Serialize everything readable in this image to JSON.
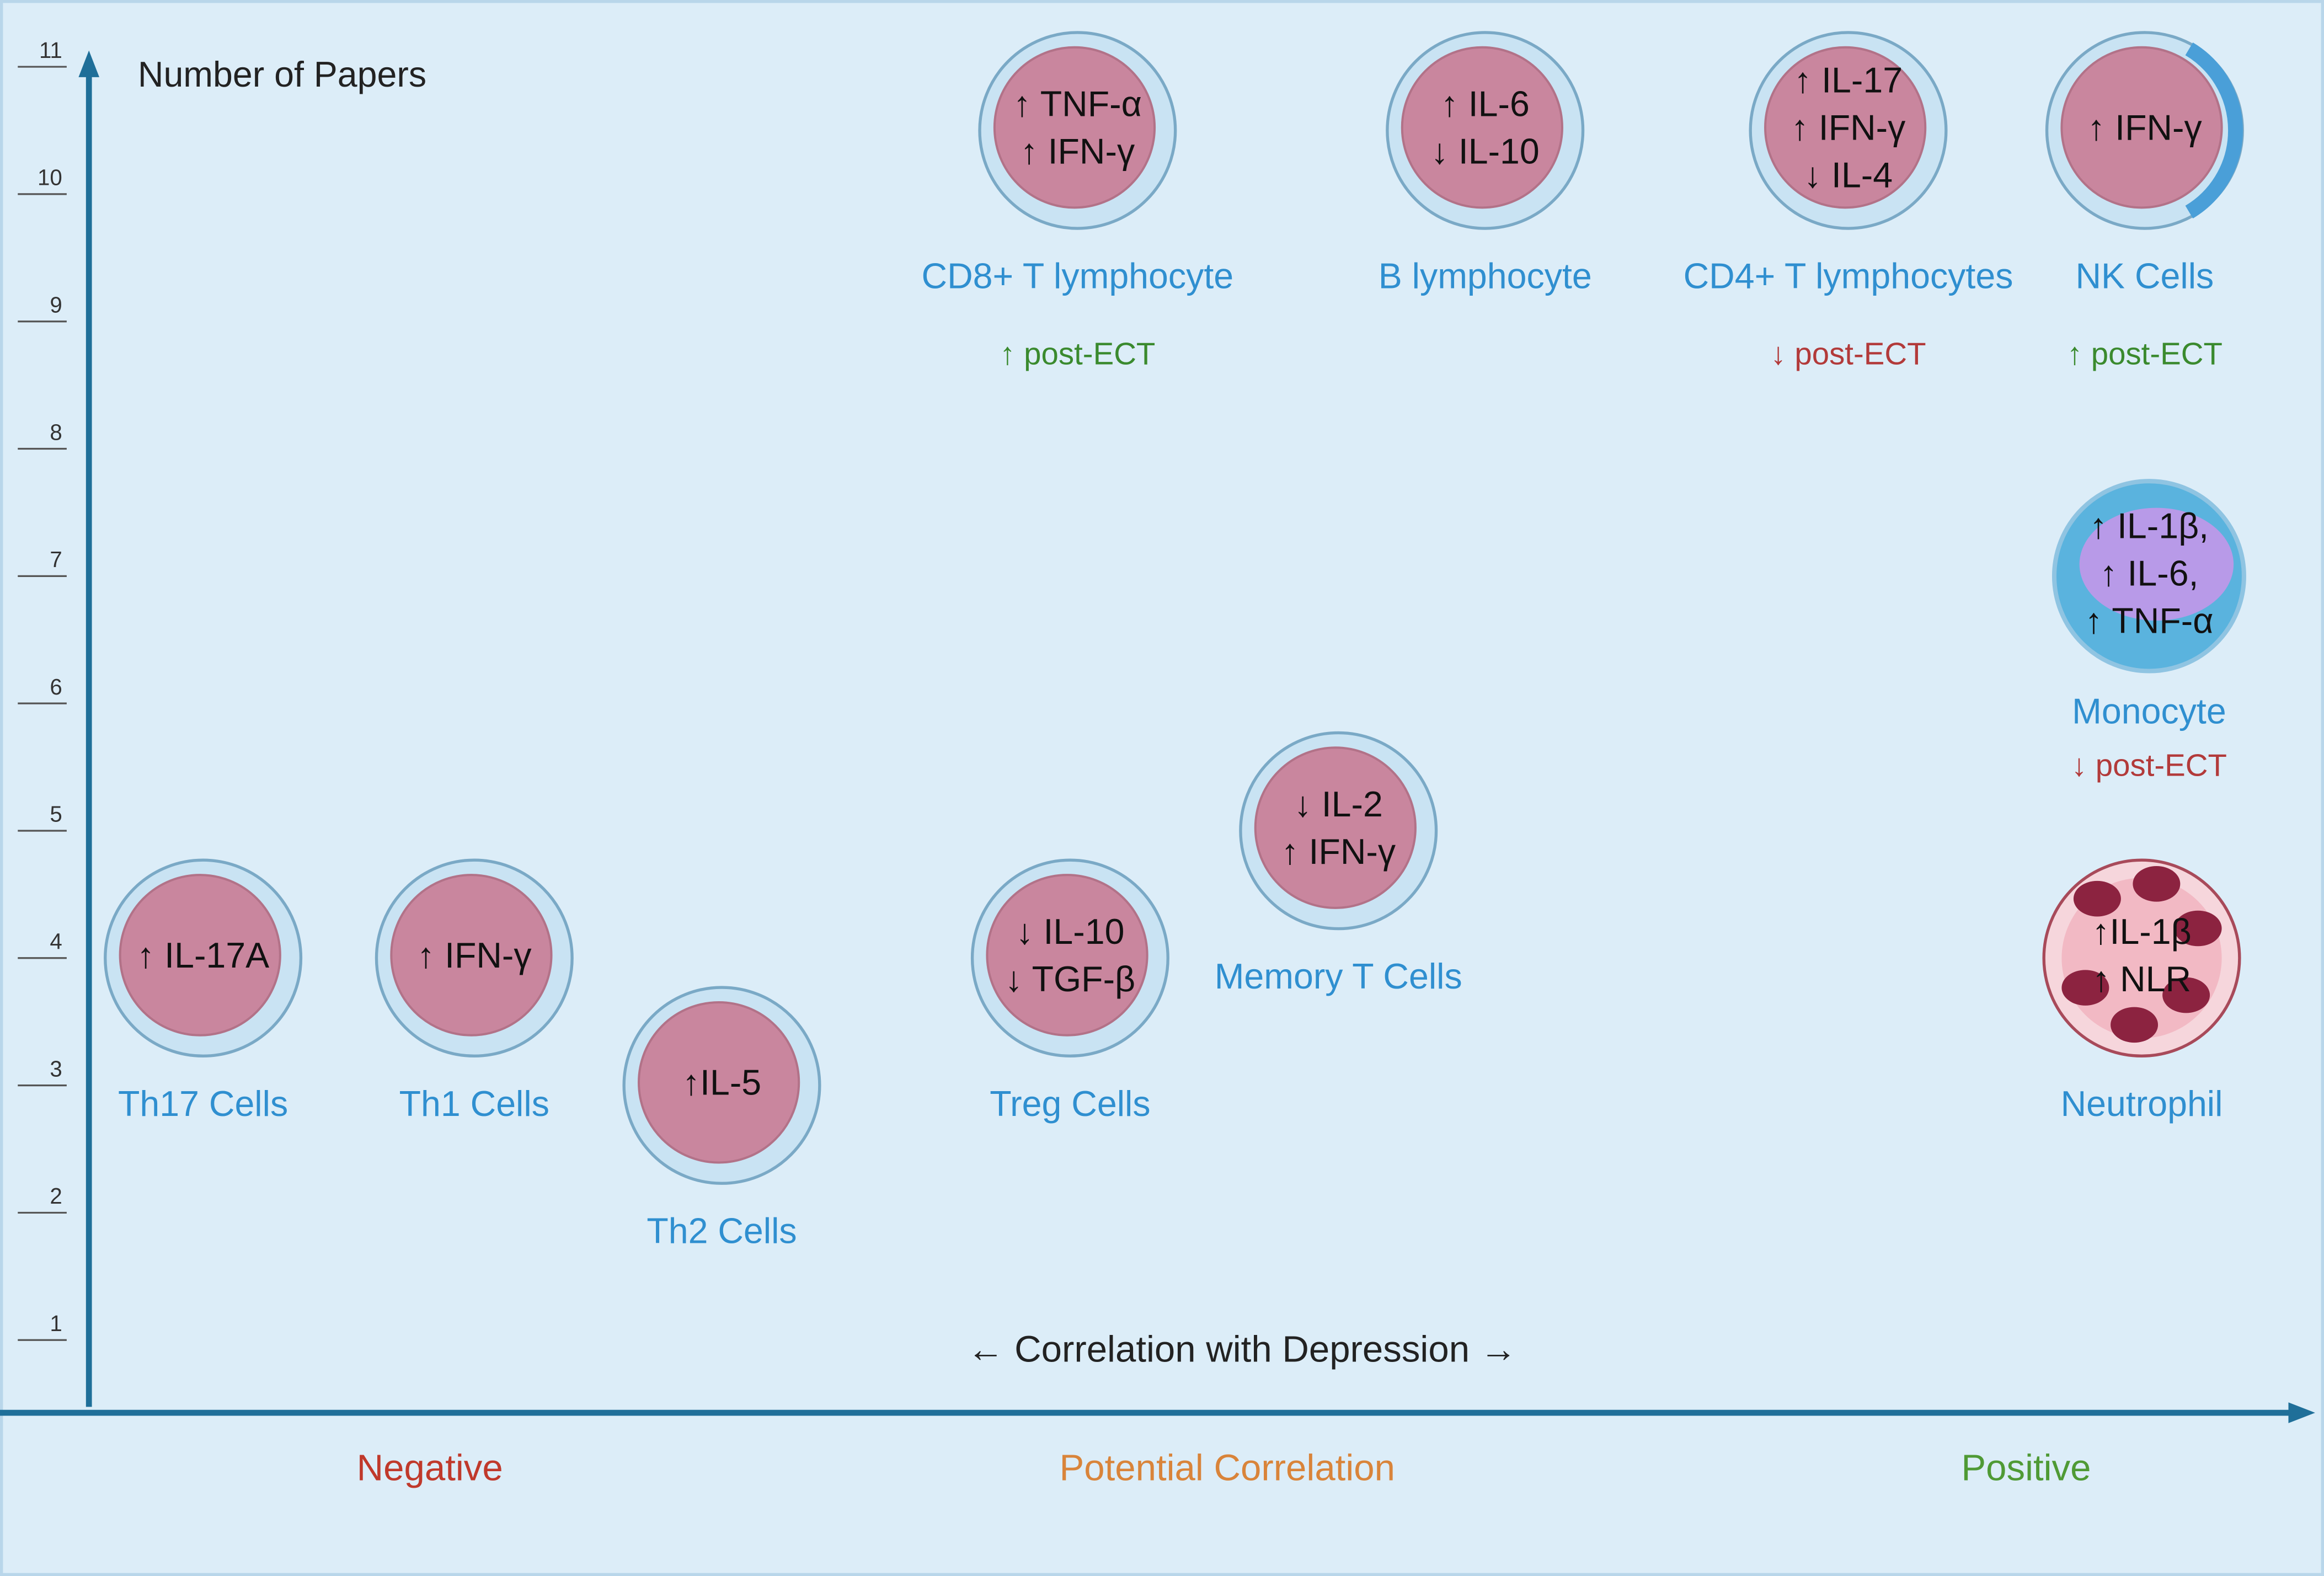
{
  "y_axis": {
    "label": "Number of Papers",
    "ticks": [
      1,
      2,
      3,
      4,
      5,
      6,
      7,
      8,
      9,
      10,
      11
    ]
  },
  "x_axis": {
    "label": "← Correlation with Depression →",
    "regions": [
      "Negative",
      "Potential Correlation",
      "Positive"
    ]
  },
  "cells": [
    {
      "name": "Th17 Cells",
      "markers": [
        "↑ IL-17A"
      ],
      "papers": 4
    },
    {
      "name": "Th1 Cells",
      "markers": [
        "↑ IFN-γ"
      ],
      "papers": 4
    },
    {
      "name": "Th2 Cells",
      "markers": [
        "↑IL-5"
      ],
      "papers": 3
    },
    {
      "name": "Treg Cells",
      "markers": [
        "↓ IL-10",
        "↓ TGF-β"
      ],
      "papers": 4
    },
    {
      "name": "Memory T Cells",
      "markers": [
        "↓ IL-2",
        "↑ IFN-γ"
      ],
      "papers": 5
    },
    {
      "name": "CD8+ T lymphocyte",
      "markers": [
        "↑ TNF-α",
        "↑ IFN-γ"
      ],
      "note": "↑ post-ECT",
      "papers": 10.5
    },
    {
      "name": "B lymphocyte",
      "markers": [
        "↑ IL-6",
        "↓ IL-10"
      ],
      "papers": 10.5
    },
    {
      "name": "CD4+ T lymphocytes",
      "markers": [
        "↑ IL-17",
        "↑ IFN-γ",
        "↓ IL-4"
      ],
      "note": "↓ post-ECT",
      "papers": 10.5
    },
    {
      "name": "NK Cells",
      "markers": [
        "↑ IFN-γ"
      ],
      "note": "↑ post-ECT",
      "papers": 10.5
    },
    {
      "name": "Monocyte",
      "markers": [
        "↑ IL-1β,",
        "↑ IL-6,",
        "↑ TNF-α"
      ],
      "note": "↓ post-ECT",
      "papers": 7
    },
    {
      "name": "Neutrophil",
      "markers": [
        "↑IL-1β",
        "↑ NLR"
      ],
      "papers": 4
    }
  ]
}
